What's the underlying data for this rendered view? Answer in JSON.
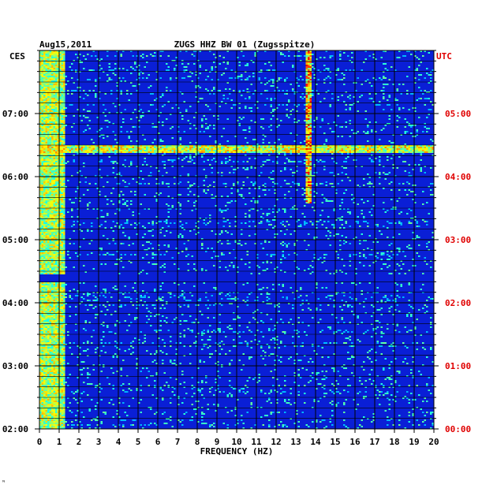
{
  "chart_data": {
    "type": "heatmap",
    "date": "Aug15,2011",
    "title": "ZUGS HHZ BW 01 (Zugsspitze)",
    "left_timezone": "CES",
    "right_timezone": "UTC",
    "xlabel": "FREQUENCY (HZ)",
    "xlim": [
      0,
      20
    ],
    "x_ticks": [
      "0",
      "1",
      "2",
      "3",
      "4",
      "5",
      "6",
      "7",
      "8",
      "9",
      "10",
      "11",
      "12",
      "13",
      "14",
      "15",
      "16",
      "17",
      "18",
      "19",
      "20"
    ],
    "left_ticks": [
      "07:00",
      "06:00",
      "05:00",
      "04:00",
      "03:00",
      "02:00"
    ],
    "right_ticks": [
      "05:00",
      "04:00",
      "03:00",
      "02:00",
      "01:00",
      "00:00"
    ],
    "hours_span": [
      2,
      8
    ],
    "colors": {
      "background": "#0a1fd6",
      "grid": "#000000",
      "utc_text": "#e00000",
      "text": "#000000"
    },
    "features": [
      {
        "name": "low-frequency noise band",
        "freq_hz": [
          0,
          1.2
        ],
        "time_ces": [
          2.0,
          8.0
        ],
        "intensity": 0.7
      },
      {
        "name": "tonal line",
        "freq_hz": 13.6,
        "time_ces": [
          5.6,
          8.0
        ],
        "intensity": 0.9
      },
      {
        "name": "broadband burst",
        "freq_hz": [
          0,
          20
        ],
        "time_ces": 6.45,
        "intensity": 0.75
      },
      {
        "name": "quiet band",
        "freq_hz": [
          0,
          20
        ],
        "time_ces": 4.4,
        "intensity": 0.0
      }
    ]
  },
  "footer_mark": "ᴺ"
}
